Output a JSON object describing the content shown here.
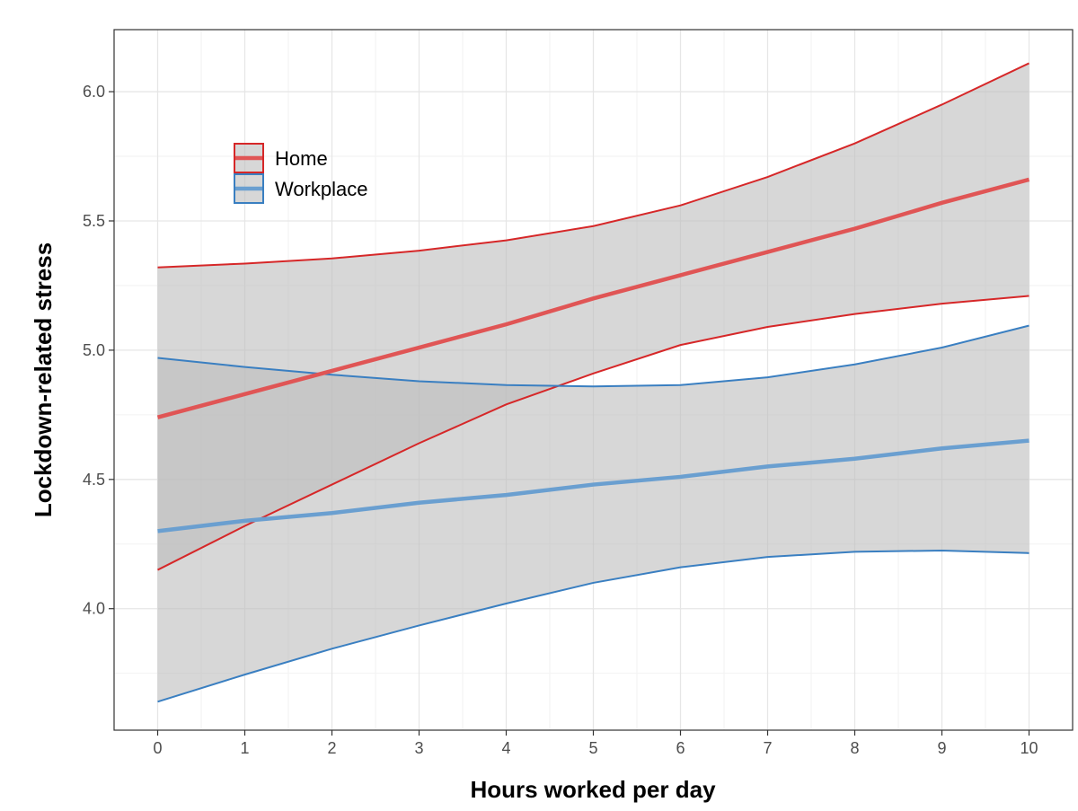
{
  "chart_data": {
    "type": "line",
    "xlabel": "Hours worked per day",
    "ylabel": "Lockdown-related stress",
    "xlim": [
      -0.5,
      10.5
    ],
    "ylim": [
      3.53,
      6.24
    ],
    "x_ticks": [
      0,
      1,
      2,
      3,
      4,
      5,
      6,
      7,
      8,
      9,
      10
    ],
    "y_ticks": [
      4.0,
      4.5,
      5.0,
      5.5,
      6.0
    ],
    "y_tick_labels": [
      "4.0",
      "4.5",
      "5.0",
      "5.5",
      "6.0"
    ],
    "grid": true,
    "legend_position": "top-left",
    "band_fill": "#bdbdbd",
    "x": [
      0,
      1,
      2,
      3,
      4,
      5,
      6,
      7,
      8,
      9,
      10
    ],
    "series": [
      {
        "name": "Home",
        "color": "#d62728",
        "line_color": "#e05555",
        "fit": [
          4.74,
          4.83,
          4.92,
          5.01,
          5.1,
          5.2,
          5.29,
          5.38,
          5.47,
          5.57,
          5.66
        ],
        "upper": [
          5.32,
          5.335,
          5.355,
          5.385,
          5.425,
          5.48,
          5.56,
          5.67,
          5.8,
          5.95,
          6.11
        ],
        "lower": [
          4.15,
          4.32,
          4.48,
          4.64,
          4.79,
          4.91,
          5.02,
          5.09,
          5.14,
          5.18,
          5.21
        ]
      },
      {
        "name": "Workplace",
        "color": "#3a7fc1",
        "line_color": "#6a9fd0",
        "fit": [
          4.3,
          4.34,
          4.37,
          4.41,
          4.44,
          4.48,
          4.51,
          4.55,
          4.58,
          4.62,
          4.65
        ],
        "upper": [
          4.97,
          4.935,
          4.905,
          4.88,
          4.865,
          4.86,
          4.865,
          4.895,
          4.945,
          5.01,
          5.095
        ],
        "lower": [
          3.64,
          3.745,
          3.845,
          3.935,
          4.02,
          4.1,
          4.16,
          4.2,
          4.22,
          4.225,
          4.215
        ]
      }
    ]
  }
}
